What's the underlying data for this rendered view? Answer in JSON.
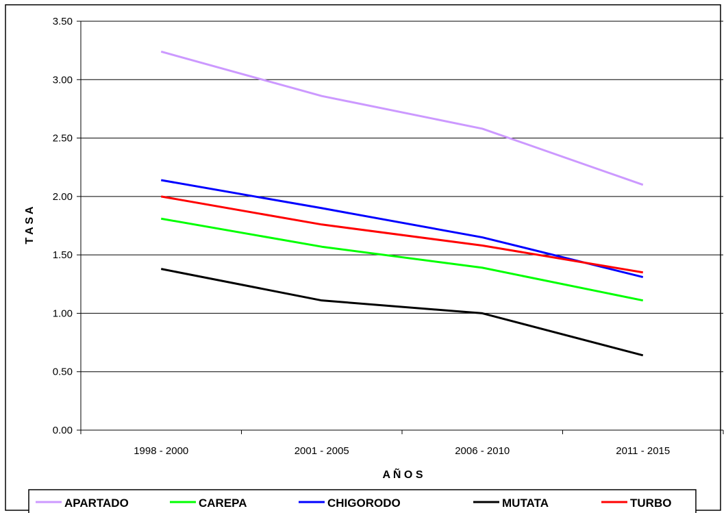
{
  "chart_data": {
    "type": "line",
    "title": "",
    "xlabel": "A Ñ O S",
    "ylabel": "T A S A",
    "categories": [
      "1998 - 2000",
      "2001 - 2005",
      "2006 - 2010",
      "2011 - 2015"
    ],
    "ylim": [
      0,
      3.5
    ],
    "yticks": [
      "0.00",
      "0.50",
      "1.00",
      "1.50",
      "2.00",
      "2.50",
      "3.00",
      "3.50"
    ],
    "grid": true,
    "legend_position": "bottom",
    "series": [
      {
        "name": "APARTADO",
        "color": "#cc99ff",
        "values": [
          3.24,
          2.86,
          2.58,
          2.1
        ]
      },
      {
        "name": "CAREPA",
        "color": "#00ff00",
        "values": [
          1.81,
          1.57,
          1.39,
          1.11
        ]
      },
      {
        "name": "CHIGORODO",
        "color": "#0000ff",
        "values": [
          2.14,
          1.9,
          1.65,
          1.31
        ]
      },
      {
        "name": "MUTATA",
        "color": "#000000",
        "values": [
          1.38,
          1.11,
          1.0,
          0.64
        ]
      },
      {
        "name": "TURBO",
        "color": "#ff0000",
        "values": [
          2.0,
          1.76,
          1.58,
          1.35
        ]
      }
    ]
  }
}
